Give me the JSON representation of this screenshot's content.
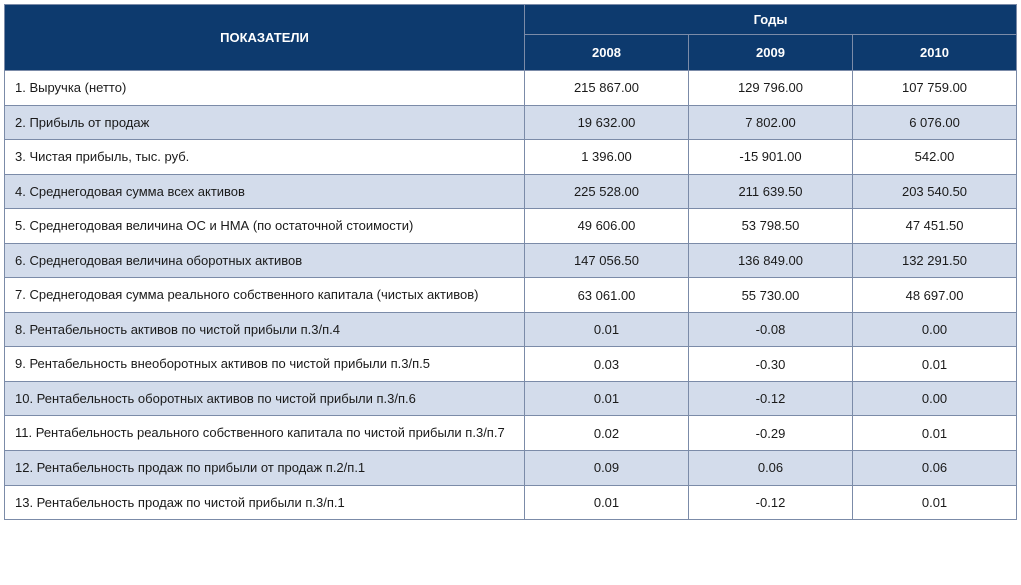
{
  "table": {
    "type": "table",
    "header_bg": "#0d3a6e",
    "header_fg": "#ffffff",
    "row_alt_bg_a": "#ffffff",
    "row_alt_bg_b": "#d3dceb",
    "border_color": "#7b8ba8",
    "label_header": "ПОКАЗАТЕЛИ",
    "years_header": "Годы",
    "years": [
      "2008",
      "2009",
      "2010"
    ],
    "rows": [
      {
        "label": "1. Выручка (нетто)",
        "vals": [
          "215 867.00",
          "129 796.00",
          "107 759.00"
        ]
      },
      {
        "label": "2. Прибыль от продаж",
        "vals": [
          "19 632.00",
          "7 802.00",
          "6 076.00"
        ]
      },
      {
        "label": "3. Чистая прибыль, тыс. руб.",
        "vals": [
          "1 396.00",
          "-15 901.00",
          "542.00"
        ]
      },
      {
        "label": "4. Среднегодовая сумма всех активов",
        "vals": [
          "225 528.00",
          "211 639.50",
          "203 540.50"
        ]
      },
      {
        "label": "5. Среднегодовая величина ОС и НМА (по остаточной стоимости)",
        "vals": [
          "49 606.00",
          "53 798.50",
          "47 451.50"
        ]
      },
      {
        "label": "6. Среднегодовая величина оборотных активов",
        "vals": [
          "147 056.50",
          "136 849.00",
          "132 291.50"
        ]
      },
      {
        "label": "7. Среднегодовая сумма реального собственного капитала (чистых активов)",
        "vals": [
          "63 061.00",
          "55 730.00",
          "48 697.00"
        ]
      },
      {
        "label": "8. Рентабельность активов по чистой прибыли п.3/п.4",
        "vals": [
          "0.01",
          "-0.08",
          "0.00"
        ]
      },
      {
        "label": "9. Рентабельность внеоборотных активов по чистой прибыли п.3/п.5",
        "vals": [
          "0.03",
          "-0.30",
          "0.01"
        ]
      },
      {
        "label": "10. Рентабельность оборотных активов по чистой прибыли п.3/п.6",
        "vals": [
          "0.01",
          "-0.12",
          "0.00"
        ]
      },
      {
        "label": "11. Рентабельность реального собственного капитала по чистой прибыли п.3/п.7",
        "vals": [
          "0.02",
          "-0.29",
          "0.01"
        ]
      },
      {
        "label": "12. Рентабельность продаж по прибыли от продаж п.2/п.1",
        "vals": [
          "0.09",
          "0.06",
          "0.06"
        ]
      },
      {
        "label": "13. Рентабельность продаж по чистой прибыли п.3/п.1",
        "vals": [
          "0.01",
          "-0.12",
          "0.01"
        ]
      }
    ]
  }
}
